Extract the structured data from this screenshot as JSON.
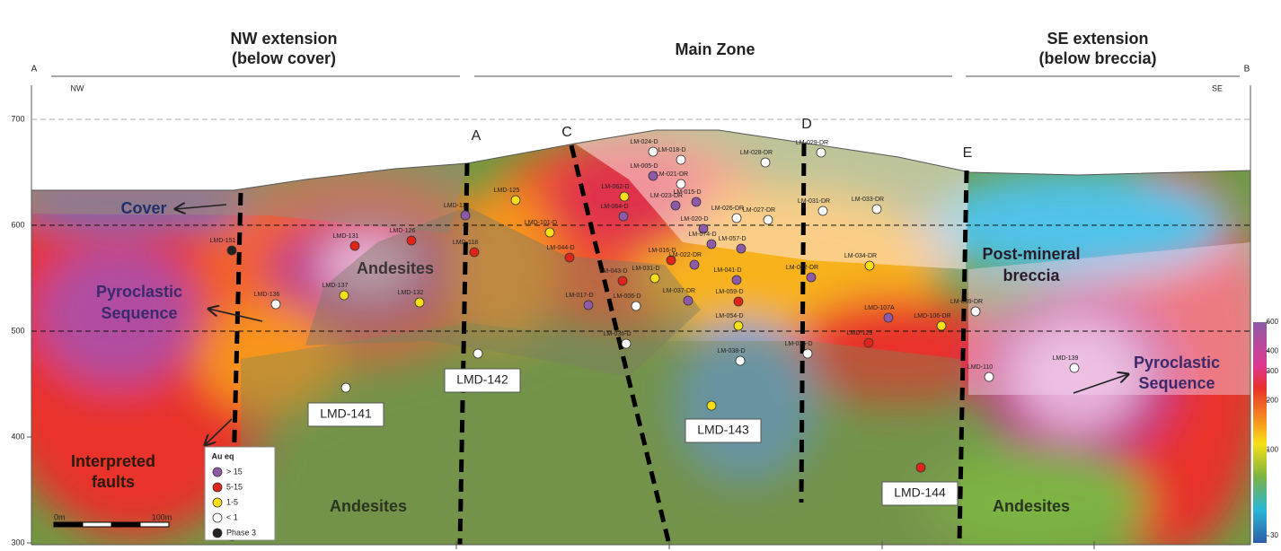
{
  "header": {
    "nw": [
      "NW extension",
      "(below cover)"
    ],
    "main": "Main Zone",
    "se": [
      "SE extension",
      "(below breccia)"
    ],
    "section_start": "A",
    "section_end": "B",
    "left_dir": "NW",
    "right_dir": "SE"
  },
  "elevation_axis": {
    "ticks": [
      700,
      600,
      500,
      400,
      300
    ]
  },
  "colorbar": {
    "ticks": [
      600,
      400,
      300,
      200,
      100,
      30
    ]
  },
  "units": {
    "cover": "Cover",
    "andesites": [
      "Andesites",
      "Andesites",
      "Andesites"
    ],
    "pyroclastic_left": [
      "Pyroclastic",
      "Sequence"
    ],
    "pyroclastic_right": [
      "Pyroclastic",
      "Sequence"
    ],
    "breccia": [
      "Post-mineral",
      "breccia"
    ],
    "faults": [
      "Interpreted",
      "faults"
    ]
  },
  "fault_labels": [
    "A",
    "C",
    "D",
    "E"
  ],
  "legend": {
    "title": "Au eq",
    "items": [
      "> 15",
      "5-15",
      "1-5",
      "< 1",
      "Phase 3"
    ]
  },
  "scale_bar": {
    "start": "0m",
    "end": "100m"
  },
  "drill_holes": [
    "LMD-151",
    "LMD-131",
    "LMD-126",
    "LMD-137",
    "LMD-136",
    "LMD-132",
    "LMD-113",
    "LMD-118",
    "LMD-125",
    "LMD-101-D",
    "LM-024-D",
    "LM-018-D",
    "LM-028-DR",
    "LM-029-DR",
    "LM-021-DR",
    "LM-031-DR",
    "LM-033-DR",
    "LM-026-DR",
    "LM-027-DR",
    "LM-034-DR",
    "LM-032-DR",
    "LM-039-DR",
    "LMD-107A",
    "LMD-106-DR",
    "LMD-129",
    "LM-038-D",
    "LM-035-D",
    "LM-036-D",
    "LM-017-D",
    "LM-006-D",
    "LM-037-DR",
    "LM-041-D",
    "LM-059-D",
    "LM-054-D",
    "LM-057-D",
    "LM-016-D",
    "LM-022-DR",
    "LM-031-D",
    "LM-043-D",
    "LM-064-D",
    "LM-020-D",
    "LM-074-D",
    "LM-023-DR",
    "LM-005-D",
    "LM-015-D",
    "LM-062-D",
    "LM-044-D",
    "LMD-110",
    "LMD-139"
  ],
  "boxed_holes": [
    "LMD-141",
    "LMD-142",
    "LMD-143",
    "LMD-144"
  ]
}
